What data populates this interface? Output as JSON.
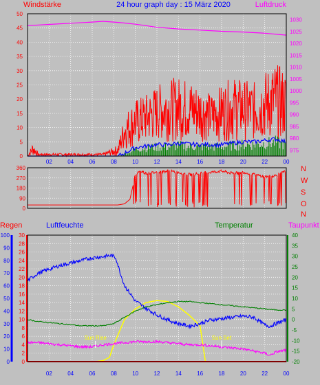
{
  "header": {
    "left_label": "Windstärke",
    "title": "24 hour graph day : 15 März 2020",
    "right_label": "Luftdruck"
  },
  "direction_labels": [
    "N",
    "W",
    "S",
    "O",
    "N"
  ],
  "lower_header": {
    "regen": "Regen",
    "luftfeuchte": "Luftfeuchte",
    "temperatur": "Temperatur",
    "taupunkt": "Taupunkt"
  },
  "sun_labels": {
    "rise": "Sun Rise",
    "set": "Sun Set",
    "rise_hour": 6.3,
    "set_hour": 18.0
  },
  "x_ticks": [
    "02",
    "04",
    "06",
    "08",
    "10",
    "12",
    "14",
    "16",
    "18",
    "20",
    "22",
    "00"
  ],
  "colors": {
    "background": "#c0c0c0",
    "wind": "#ff0000",
    "wind_avg": "#0000ff",
    "gust_green": "#008000",
    "pressure": "#ff00ff",
    "direction": "#ff0000",
    "humidity": "#0000ff",
    "temperature": "#008000",
    "dewpoint": "#ff00ff",
    "solar": "#ffff00",
    "title": "#0000ff"
  },
  "chart_data": [
    {
      "type": "line",
      "name": "wind-pressure",
      "title": "24 hour graph day : 15 März 2020",
      "x_range_hours": [
        0,
        24
      ],
      "left_axis": {
        "label": "Windstärke",
        "range": [
          0,
          50
        ],
        "ticks": [
          0,
          5,
          10,
          15,
          20,
          25,
          30,
          35,
          40,
          45,
          50
        ]
      },
      "right_axis": {
        "label": "Luftdruck",
        "range": [
          972.5,
          1032.5
        ],
        "ticks": [
          975,
          980,
          985,
          990,
          995,
          1000,
          1005,
          1010,
          1015,
          1020,
          1025,
          1030
        ]
      },
      "series": [
        {
          "name": "Luftdruck",
          "axis": "right",
          "x": [
            0,
            2,
            4,
            6,
            7,
            8,
            9,
            10,
            11,
            12,
            14,
            16,
            18,
            20,
            22,
            24
          ],
          "y": [
            1027.5,
            1028.0,
            1028.5,
            1029.0,
            1029.3,
            1029.0,
            1028.6,
            1028.1,
            1027.5,
            1026.8,
            1026.1,
            1025.6,
            1025.1,
            1024.8,
            1024.3,
            1023.5
          ]
        },
        {
          "name": "Windstärke",
          "axis": "left",
          "envelope": {
            "x": [
              0,
              0.5,
              1,
              3,
              5,
              7,
              8.4,
              9,
              10,
              11,
              12,
              13,
              14,
              15,
              16,
              17,
              18,
              19,
              20,
              21,
              22,
              23,
              24
            ],
            "ymax": [
              0,
              5,
              1,
              1,
              1,
              1,
              4,
              15,
              20,
              22,
              25,
              27,
              28,
              27,
              25,
              22,
              25,
              28,
              27,
              26,
              30,
              33,
              30
            ],
            "ymin": [
              0,
              0,
              0,
              0,
              0,
              0,
              0,
              2,
              3,
              4,
              5,
              5,
              5,
              5,
              5,
              5,
              5,
              5,
              5,
              5,
              5,
              5,
              5
            ]
          }
        },
        {
          "name": "Wind mean",
          "axis": "left",
          "x": [
            0,
            8.4,
            9,
            10,
            11,
            12,
            13,
            14,
            15,
            16,
            17,
            18,
            19,
            20,
            21,
            22,
            23,
            24
          ],
          "y": [
            0,
            0,
            1,
            3,
            3.5,
            4,
            4,
            4.5,
            4.2,
            4,
            4,
            4,
            4.5,
            5,
            5,
            5.5,
            6,
            5
          ]
        }
      ]
    },
    {
      "type": "line",
      "name": "wind-direction",
      "axis": {
        "range": [
          0,
          360
        ],
        "ticks": [
          0,
          90,
          180,
          270,
          360
        ]
      },
      "series": [
        {
          "name": "Windrichtung",
          "x": [
            0,
            8.4,
            9,
            9.5,
            10,
            10.5,
            11,
            12,
            13,
            14,
            15,
            16,
            17,
            18,
            19,
            20,
            21,
            22,
            23,
            24
          ],
          "y": [
            30,
            30,
            40,
            80,
            300,
            330,
            310,
            320,
            330,
            320,
            300,
            310,
            320,
            330,
            310,
            320,
            300,
            280,
            290,
            330
          ]
        }
      ]
    },
    {
      "type": "line",
      "name": "humidity-temperature",
      "axes": {
        "regen": {
          "label": "Regen",
          "range": [
            0,
            30
          ],
          "ticks": [
            0,
            2,
            4,
            6,
            8,
            10,
            12,
            14,
            16,
            18,
            20,
            22,
            24,
            26,
            28,
            30
          ]
        },
        "luftfeuchte": {
          "label": "Luftfeuchte",
          "range": [
            0,
            100
          ],
          "ticks": [
            0,
            10,
            20,
            30,
            40,
            50,
            60,
            70,
            80,
            90,
            100
          ]
        },
        "temperatur": {
          "label": "Temperatur",
          "range": [
            -20,
            40
          ],
          "ticks": [
            -20,
            -15,
            -10,
            -5,
            0,
            5,
            10,
            15,
            20,
            25,
            30,
            35,
            40
          ]
        }
      },
      "series": [
        {
          "name": "Luftfeuchte",
          "axis": "luftfeuchte",
          "x": [
            0,
            1,
            2,
            3,
            4,
            5,
            6,
            7,
            7.8,
            8.2,
            8.6,
            9,
            10,
            11,
            12,
            13,
            14,
            15,
            16,
            17,
            18,
            19,
            20,
            21,
            22,
            22.5,
            23,
            24
          ],
          "y": [
            64,
            70,
            73,
            76,
            78,
            80,
            82,
            83,
            84,
            82,
            70,
            60,
            48,
            42,
            37,
            33,
            30,
            28,
            30,
            33,
            34,
            35,
            36,
            35,
            29,
            28,
            30,
            33
          ]
        },
        {
          "name": "Temperatur",
          "axis": "temperatur",
          "x": [
            0,
            1,
            2,
            3,
            4,
            5,
            6,
            7,
            8,
            9,
            10,
            11,
            12,
            13,
            14,
            15,
            16,
            17,
            18,
            19,
            20,
            21,
            22,
            23,
            24
          ],
          "y": [
            0,
            -1,
            -1.5,
            -2,
            -2.5,
            -3,
            -3,
            -3,
            -2,
            1,
            4,
            6,
            7,
            8,
            8.5,
            8.5,
            8,
            7.5,
            7,
            6.5,
            6,
            5.5,
            5,
            4.5,
            4.5
          ]
        },
        {
          "name": "Taupunkt",
          "axis": "temperatur",
          "x": [
            0,
            1,
            2,
            3,
            4,
            5,
            6,
            7,
            8,
            9,
            10,
            11,
            12,
            13,
            14,
            15,
            16,
            17,
            18,
            19,
            20,
            21,
            22,
            22.5,
            23,
            24
          ],
          "y": [
            -11,
            -11,
            -11.5,
            -12,
            -12.5,
            -13,
            -13,
            -12,
            -11.5,
            -11,
            -10.5,
            -10.5,
            -10.5,
            -11,
            -11.5,
            -12,
            -12,
            -12.5,
            -13,
            -13.5,
            -14,
            -15,
            -16,
            -17,
            -15.5,
            -14.5
          ]
        },
        {
          "name": "Solar",
          "axis": "temperatur",
          "x": [
            0,
            6.3,
            7,
            7.6,
            8,
            9,
            10,
            11,
            12,
            13,
            14,
            15,
            16,
            16.5,
            17,
            18,
            24
          ],
          "y": [
            -20,
            -20,
            -19.5,
            -18,
            -12,
            0,
            5,
            8,
            9,
            8.5,
            6,
            2,
            -3,
            -20,
            -20,
            -20,
            -20
          ]
        },
        {
          "name": "Regen",
          "axis": "regen",
          "x": [
            0,
            24
          ],
          "y": [
            0,
            0
          ]
        }
      ]
    }
  ]
}
